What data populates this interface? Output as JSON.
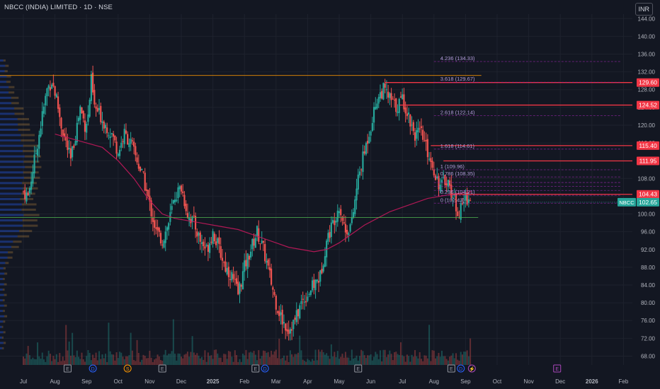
{
  "header": {
    "title": "NBCC (INDIA) LIMITED · 1D · NSE"
  },
  "currency": "INR",
  "colors": {
    "background": "#131722",
    "grid": "#1e222d",
    "up": "#26a69a",
    "down": "#ef5350",
    "resistance": "#f23645",
    "fib": "#9c27b0",
    "ma": "#c2185b",
    "fib_blue": "#2962ff"
  },
  "chart_data": {
    "type": "candlestick",
    "y_axis": {
      "min": 66,
      "max": 145,
      "ticks": [
        68,
        72,
        76,
        80,
        84,
        88,
        92,
        96,
        100,
        104,
        108,
        112,
        116,
        120,
        124,
        128,
        132,
        136,
        140,
        144
      ]
    },
    "x_axis": {
      "labels": [
        "Jul",
        "Aug",
        "Sep",
        "Oct",
        "Nov",
        "Dec",
        "2025",
        "Feb",
        "Mar",
        "Apr",
        "May",
        "Jun",
        "Jul",
        "Aug",
        "Sep",
        "Oct",
        "Nov",
        "Dec",
        "2026",
        "Feb"
      ]
    },
    "symbol": "NBCC",
    "last_price": "102.65",
    "price_levels": [
      {
        "value": 129.6,
        "label": "129.60"
      },
      {
        "value": 124.52,
        "label": "124.52"
      },
      {
        "value": 115.4,
        "label": "115.40"
      },
      {
        "value": 111.95,
        "label": "111.95"
      },
      {
        "value": 104.43,
        "label": "104.43"
      }
    ],
    "support_level": 99.2,
    "fib_levels": [
      {
        "ratio": "4.236",
        "value": 134.33,
        "label": "4.236 (134.33)"
      },
      {
        "ratio": "3.618",
        "value": 129.67,
        "label": "3.618 (129.67)"
      },
      {
        "ratio": "2.618",
        "value": 122.14,
        "label": "2.618 (122.14)"
      },
      {
        "ratio": "1.618",
        "value": 114.61,
        "label": "1.618 (114.61)"
      },
      {
        "ratio": "1",
        "value": 109.96,
        "label": "1 (109.96)"
      },
      {
        "ratio": "0.786",
        "value": 108.35,
        "label": "0.786 (108.35)"
      },
      {
        "ratio": "0.618",
        "value": 107.08,
        "label": ""
      },
      {
        "ratio": "0.5",
        "value": 106.2,
        "label": ""
      },
      {
        "ratio": "0.382",
        "value": 105.3,
        "label": ""
      },
      {
        "ratio": "0.236",
        "value": 104.21,
        "label": "0.236 (104.21)"
      },
      {
        "ratio": "0",
        "value": 102.43,
        "label": "0 (102.43)"
      }
    ],
    "event_markers": [
      {
        "label": "E",
        "type": "earnings",
        "month": 1.4
      },
      {
        "label": "D",
        "type": "dividend",
        "month": 2.2
      },
      {
        "label": "S",
        "type": "split",
        "month": 3.3
      },
      {
        "label": "E",
        "type": "earnings",
        "month": 4.4
      },
      {
        "label": "E",
        "type": "earnings",
        "month": 7.35
      },
      {
        "label": "D",
        "type": "dividend",
        "month": 7.65
      },
      {
        "label": "E",
        "type": "earnings",
        "month": 10.6
      },
      {
        "label": "E",
        "type": "earnings",
        "month": 13.55
      },
      {
        "label": "D",
        "type": "dividend",
        "month": 13.85
      },
      {
        "label": "⚡",
        "type": "news",
        "month": 14.2
      },
      {
        "label": "E",
        "type": "earnings",
        "month": 16.9
      }
    ],
    "series_path": [
      [
        0.0,
        105
      ],
      [
        0.15,
        104
      ],
      [
        0.3,
        110
      ],
      [
        0.45,
        116
      ],
      [
        0.6,
        122
      ],
      [
        0.75,
        128
      ],
      [
        0.9,
        130
      ],
      [
        1.05,
        126
      ],
      [
        1.2,
        120
      ],
      [
        1.35,
        116
      ],
      [
        1.5,
        112
      ],
      [
        1.65,
        118
      ],
      [
        1.8,
        124
      ],
      [
        1.95,
        120
      ],
      [
        2.05,
        122
      ],
      [
        2.15,
        130
      ],
      [
        2.25,
        124
      ],
      [
        2.45,
        122
      ],
      [
        2.6,
        120
      ],
      [
        2.8,
        118
      ],
      [
        3.0,
        114
      ],
      [
        3.2,
        118
      ],
      [
        3.4,
        116
      ],
      [
        3.6,
        112
      ],
      [
        3.8,
        108
      ],
      [
        4.0,
        102
      ],
      [
        4.2,
        96
      ],
      [
        4.4,
        94
      ],
      [
        4.6,
        98
      ],
      [
        4.8,
        104
      ],
      [
        5.0,
        106
      ],
      [
        5.2,
        100
      ],
      [
        5.4,
        98
      ],
      [
        5.6,
        94
      ],
      [
        5.8,
        92
      ],
      [
        6.0,
        96
      ],
      [
        6.2,
        92
      ],
      [
        6.4,
        88
      ],
      [
        6.6,
        86
      ],
      [
        6.8,
        82
      ],
      [
        7.0,
        88
      ],
      [
        7.2,
        92
      ],
      [
        7.4,
        96
      ],
      [
        7.6,
        92
      ],
      [
        7.8,
        86
      ],
      [
        8.0,
        80
      ],
      [
        8.2,
        76
      ],
      [
        8.4,
        74
      ],
      [
        8.6,
        76
      ],
      [
        8.8,
        80
      ],
      [
        9.0,
        82
      ],
      [
        9.2,
        84
      ],
      [
        9.4,
        86
      ],
      [
        9.6,
        94
      ],
      [
        9.8,
        98
      ],
      [
        10.0,
        102
      ],
      [
        10.2,
        96
      ],
      [
        10.4,
        98
      ],
      [
        10.6,
        108
      ],
      [
        10.8,
        114
      ],
      [
        11.0,
        120
      ],
      [
        11.2,
        126
      ],
      [
        11.4,
        128
      ],
      [
        11.6,
        126
      ],
      [
        11.8,
        124
      ],
      [
        12.0,
        126
      ],
      [
        12.2,
        122
      ],
      [
        12.4,
        118
      ],
      [
        12.6,
        118
      ],
      [
        12.8,
        114
      ],
      [
        13.0,
        110
      ],
      [
        13.2,
        106
      ],
      [
        13.4,
        108
      ],
      [
        13.6,
        104
      ],
      [
        13.8,
        100
      ],
      [
        14.0,
        104
      ],
      [
        14.2,
        102.65
      ]
    ],
    "moving_average": [
      [
        1.0,
        118
      ],
      [
        1.5,
        117
      ],
      [
        2.0,
        116
      ],
      [
        2.5,
        115
      ],
      [
        3.0,
        112
      ],
      [
        3.5,
        108
      ],
      [
        4.0,
        103
      ],
      [
        4.4,
        100
      ],
      [
        4.8,
        99
      ],
      [
        5.2,
        98.5
      ],
      [
        5.6,
        98
      ],
      [
        6.0,
        97.5
      ],
      [
        6.4,
        97
      ],
      [
        6.8,
        96.5
      ],
      [
        7.2,
        95.5
      ],
      [
        7.6,
        94.5
      ],
      [
        8.0,
        93.5
      ],
      [
        8.4,
        92.5
      ],
      [
        8.8,
        92
      ],
      [
        9.2,
        91.5
      ],
      [
        9.6,
        92
      ],
      [
        10.0,
        93.5
      ],
      [
        10.4,
        95.5
      ],
      [
        10.8,
        97.5
      ],
      [
        11.2,
        99
      ],
      [
        11.6,
        100.5
      ],
      [
        12.0,
        101.5
      ],
      [
        12.4,
        102.5
      ],
      [
        12.8,
        103.5
      ],
      [
        13.2,
        104
      ],
      [
        13.6,
        104.5
      ],
      [
        14.0,
        104.8
      ],
      [
        14.2,
        105
      ]
    ]
  }
}
